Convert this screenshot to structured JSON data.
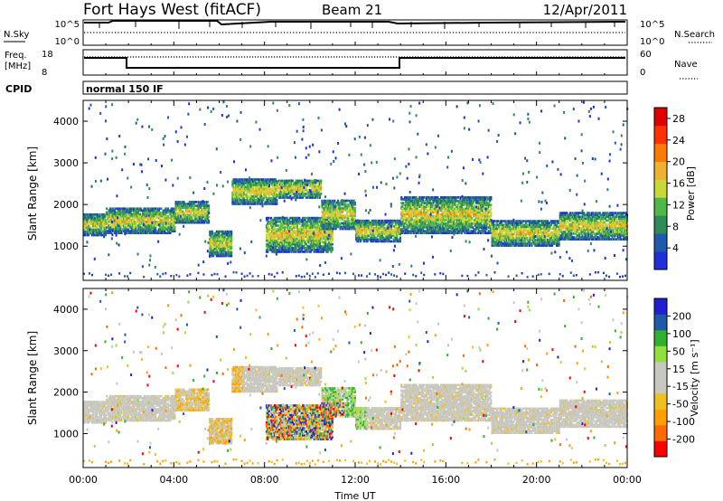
{
  "title": {
    "station": "Fort Hays West (fitACF)",
    "beam": "Beam 21",
    "date": "12/Apr/2011"
  },
  "top_panels": {
    "nsky_label": "N.Sky",
    "nsky_ticks": [
      "10^5",
      "10^0"
    ],
    "nsearch_label": "N.Search",
    "nsearch_ticks": [
      "10^5",
      "10^0"
    ],
    "freq_label_line1": "Freq.",
    "freq_label_line2": "[MHz]",
    "freq_ticks": [
      "18",
      "8"
    ],
    "nave_label": "Nave",
    "nave_ticks": [
      "60",
      "0"
    ],
    "cpid_label": "CPID",
    "cpid_text": "normal 150 IF"
  },
  "colors": {
    "power": [
      "#2030d8",
      "#1e5aa8",
      "#2e8b57",
      "#50b848",
      "#c8d838",
      "#f0b030",
      "#ff7a00",
      "#ff3000",
      "#e00000"
    ],
    "velocity": [
      "#ff0000",
      "#ff6a00",
      "#ff9f00",
      "#f0c020",
      "#c8c8c0",
      "#c8c8c0",
      "#90e040",
      "#30b030",
      "#1e5aa8",
      "#2020d0"
    ]
  },
  "chart_data": [
    {
      "type": "heatmap",
      "name": "power",
      "xlabel": "",
      "ylabel": "Slant Range [km]",
      "xlim": [
        0,
        24
      ],
      "ylim": [
        180,
        4500
      ],
      "yticks": [
        "1000",
        "2000",
        "3000",
        "4000"
      ],
      "colorbar_label": "Power [dB]",
      "colorbar_ticks": [
        "4",
        "8",
        "12",
        "16",
        "20",
        "24",
        "28"
      ],
      "colorbar_range": [
        0,
        30
      ],
      "bands": [
        {
          "t_start": 0.0,
          "t_end": 1.0,
          "r_low": 1250,
          "r_high": 1750
        },
        {
          "t_start": 1.0,
          "t_end": 4.0,
          "r_low": 1300,
          "r_high": 1900
        },
        {
          "t_start": 4.0,
          "t_end": 5.5,
          "r_low": 1550,
          "r_high": 2050
        },
        {
          "t_start": 5.5,
          "t_end": 6.5,
          "r_low": 750,
          "r_high": 1350
        },
        {
          "t_start": 6.5,
          "t_end": 8.5,
          "r_low": 2000,
          "r_high": 2600
        },
        {
          "t_start": 8.5,
          "t_end": 10.5,
          "r_low": 2150,
          "r_high": 2600
        },
        {
          "t_start": 8.0,
          "t_end": 11.0,
          "r_low": 850,
          "r_high": 1700
        },
        {
          "t_start": 10.5,
          "t_end": 12.0,
          "r_low": 1400,
          "r_high": 2100
        },
        {
          "t_start": 12.0,
          "t_end": 14.0,
          "r_low": 1100,
          "r_high": 1600
        },
        {
          "t_start": 14.0,
          "t_end": 16.0,
          "r_low": 1300,
          "r_high": 2200
        },
        {
          "t_start": 16.0,
          "t_end": 18.0,
          "r_low": 1300,
          "r_high": 2200
        },
        {
          "t_start": 18.0,
          "t_end": 21.0,
          "r_low": 1000,
          "r_high": 1600
        },
        {
          "t_start": 21.0,
          "t_end": 24.0,
          "r_low": 1150,
          "r_high": 1800
        }
      ]
    },
    {
      "type": "heatmap",
      "name": "velocity",
      "xlabel": "Time UT",
      "ylabel": "Slant Range [km]",
      "xlim": [
        0,
        24
      ],
      "ylim": [
        180,
        4500
      ],
      "xticks": [
        "00:00",
        "04:00",
        "08:00",
        "12:00",
        "16:00",
        "20:00",
        "00:00"
      ],
      "yticks": [
        "1000",
        "2000",
        "3000",
        "4000"
      ],
      "colorbar_label": "Velocity [m s⁻¹]",
      "colorbar_ticks": [
        "200",
        "100",
        "50",
        "15",
        "-15",
        "-50",
        "-100",
        "-200"
      ],
      "colorbar_range": [
        -250,
        250
      ]
    }
  ]
}
